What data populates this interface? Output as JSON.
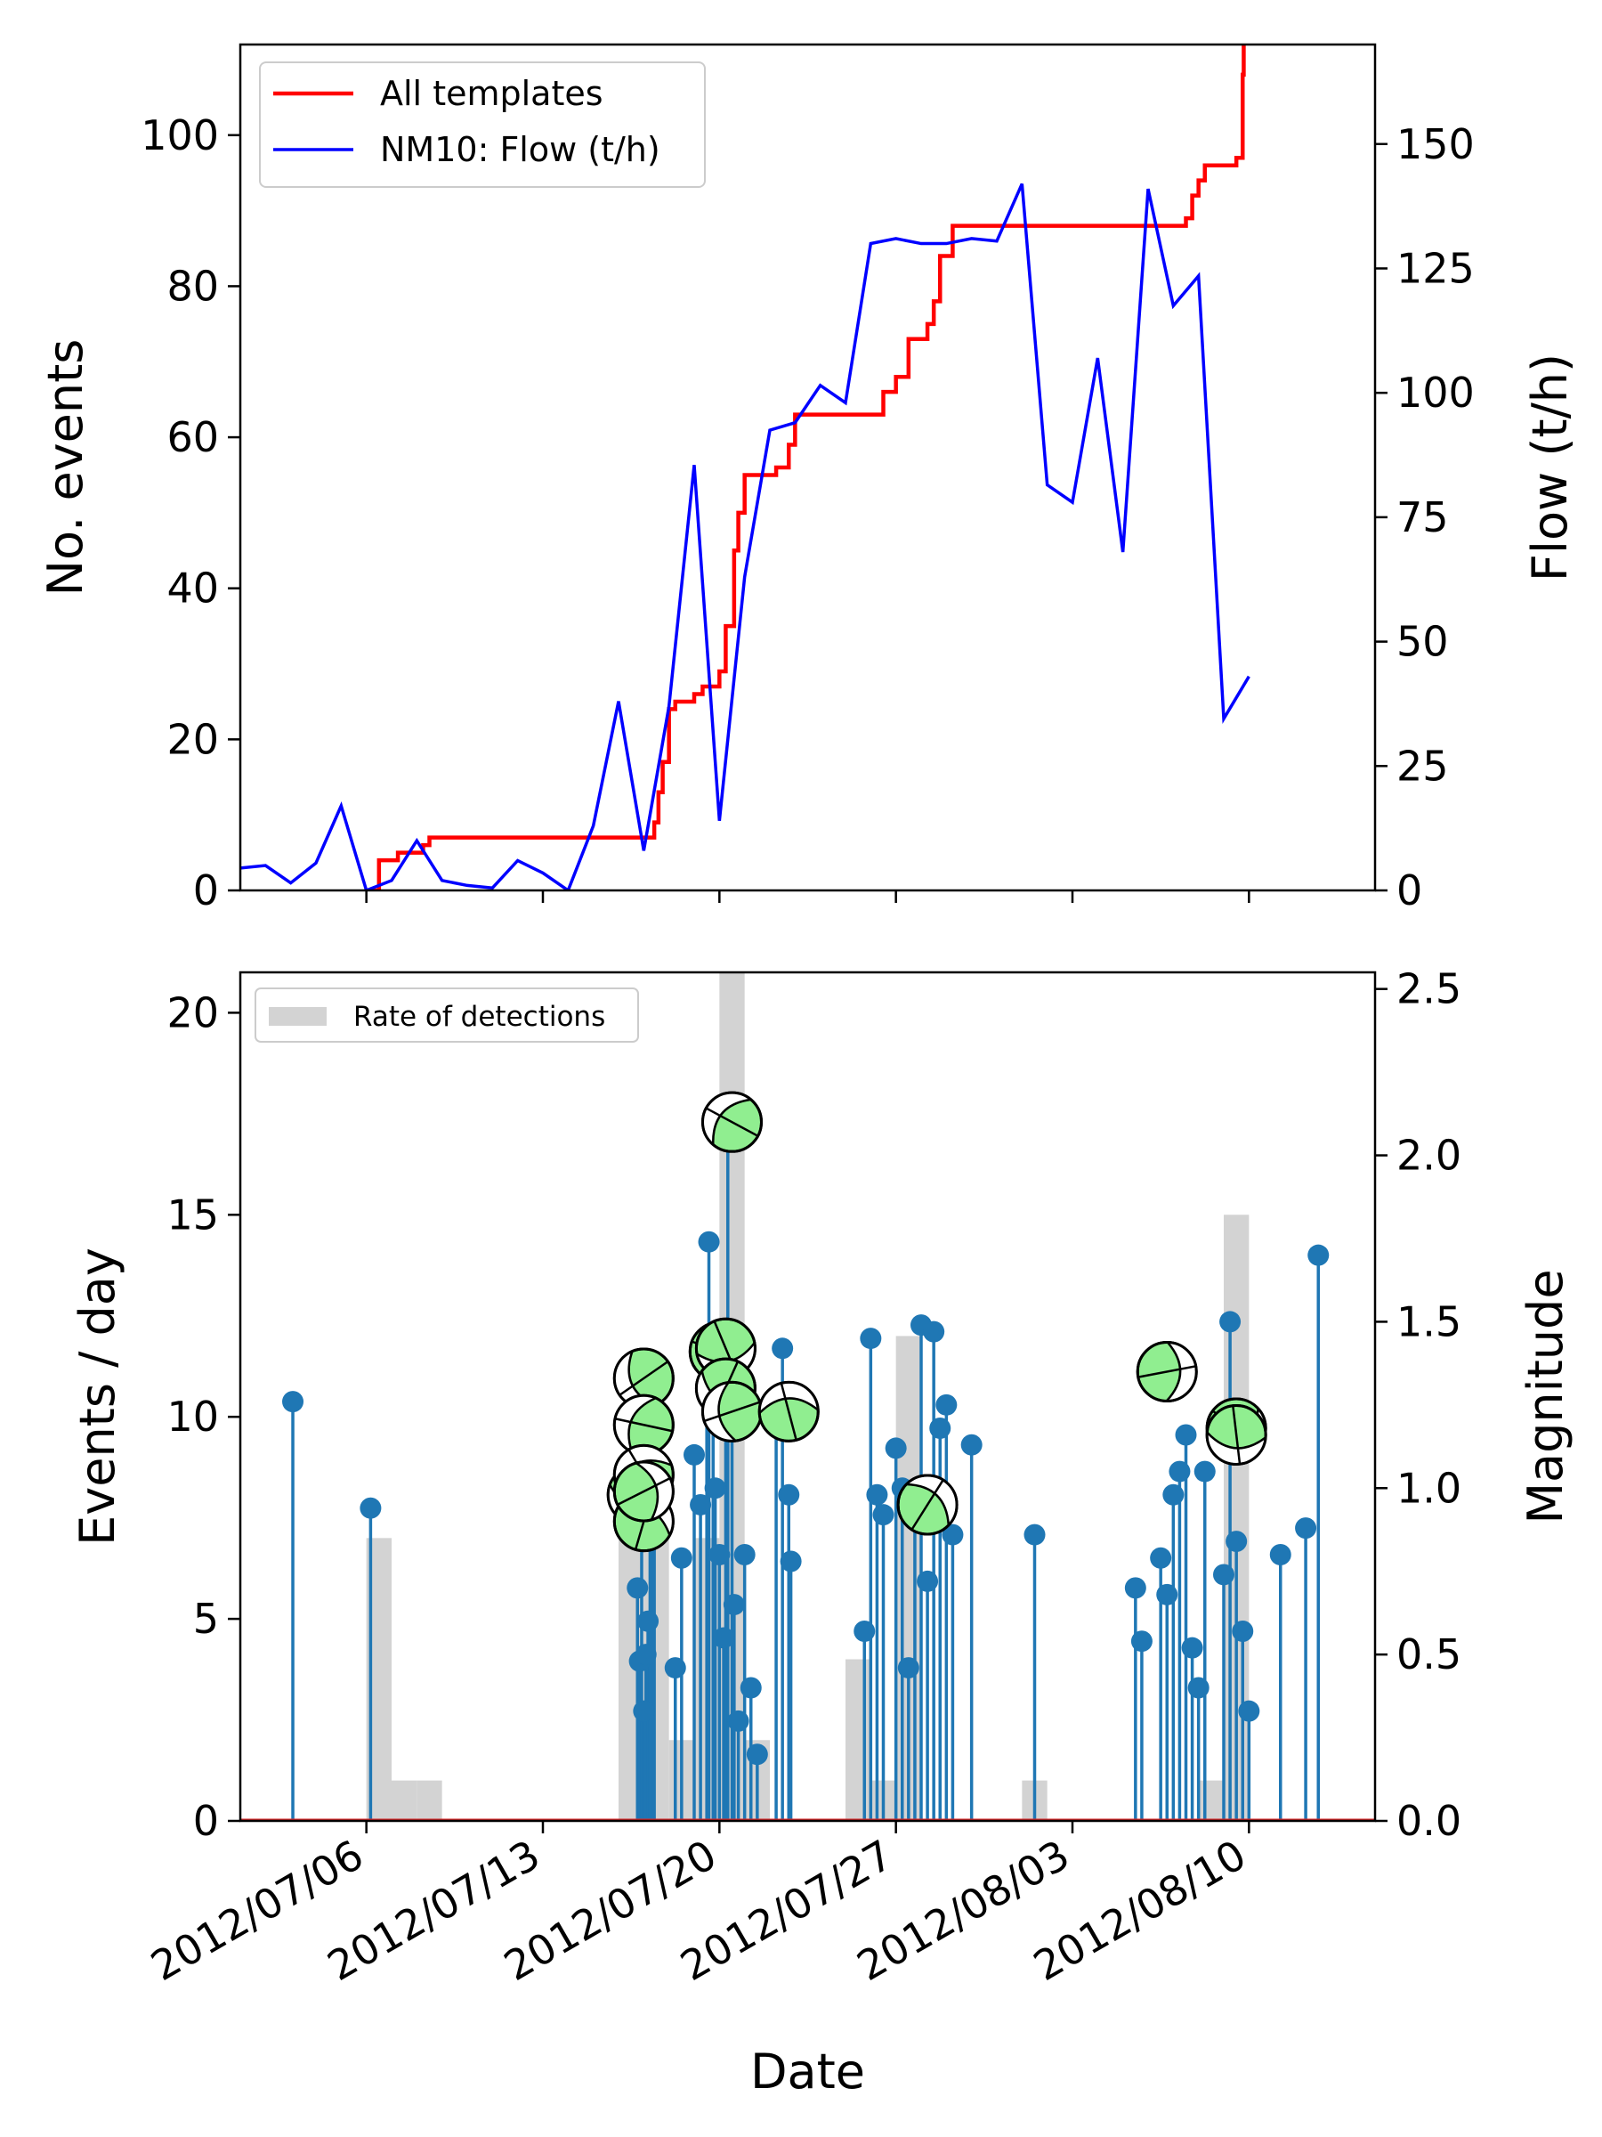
{
  "x_axis": {
    "label": "Date",
    "tick_labels": [
      "2012/07/06",
      "2012/07/13",
      "2012/07/20",
      "2012/07/27",
      "2012/08/03",
      "2012/08/10"
    ],
    "range": [
      "2012/07/01",
      "2012/08/15"
    ]
  },
  "chart_data": [
    {
      "type": "line",
      "panel": "top",
      "ylabel": "No. events",
      "ylim": [
        0,
        112
      ],
      "y_ticks": [
        0,
        20,
        40,
        60,
        80,
        100
      ],
      "y2label": "Flow (t/h)",
      "y2lim": [
        0,
        170
      ],
      "y2_ticks": [
        0,
        25,
        50,
        75,
        100,
        125,
        150
      ],
      "legend": {
        "placement": "top-left",
        "entries": [
          "All templates",
          "NM10: Flow (t/h)"
        ]
      },
      "series": [
        {
          "name": "All templates",
          "color": "#ff0000",
          "axis": "left",
          "step": true,
          "points": [
            [
              "2012/07/06 06:00",
              0
            ],
            [
              "2012/07/06 12:00",
              4
            ],
            [
              "2012/07/07 06:00",
              5
            ],
            [
              "2012/07/08 06:00",
              6
            ],
            [
              "2012/07/08 12:00",
              7
            ],
            [
              "2012/07/17 06:00",
              7
            ],
            [
              "2012/07/17 10:00",
              9
            ],
            [
              "2012/07/17 14:00",
              13
            ],
            [
              "2012/07/17 18:00",
              17
            ],
            [
              "2012/07/18 00:00",
              24
            ],
            [
              "2012/07/18 06:00",
              25
            ],
            [
              "2012/07/19 00:00",
              26
            ],
            [
              "2012/07/19 08:00",
              27
            ],
            [
              "2012/07/20 00:00",
              29
            ],
            [
              "2012/07/20 06:00",
              35
            ],
            [
              "2012/07/20 14:00",
              45
            ],
            [
              "2012/07/20 18:00",
              50
            ],
            [
              "2012/07/21 00:00",
              55
            ],
            [
              "2012/07/22 06:00",
              56
            ],
            [
              "2012/07/22 18:00",
              59
            ],
            [
              "2012/07/23 00:00",
              63
            ],
            [
              "2012/07/26 12:00",
              66
            ],
            [
              "2012/07/27 00:00",
              68
            ],
            [
              "2012/07/27 12:00",
              73
            ],
            [
              "2012/07/28 06:00",
              75
            ],
            [
              "2012/07/28 12:00",
              78
            ],
            [
              "2012/07/28 18:00",
              84
            ],
            [
              "2012/07/29 06:00",
              88
            ],
            [
              "2012/08/07 12:00",
              89
            ],
            [
              "2012/08/07 18:00",
              92
            ],
            [
              "2012/08/08 00:00",
              94
            ],
            [
              "2012/08/08 06:00",
              96
            ],
            [
              "2012/08/09 12:00",
              97
            ],
            [
              "2012/08/09 18:00",
              108
            ],
            [
              "2012/08/09 19:00",
              112
            ]
          ]
        },
        {
          "name": "NM10: Flow (t/h)",
          "color": "#0000ff",
          "axis": "right",
          "points": [
            [
              "2012/07/01",
              4.5
            ],
            [
              "2012/07/02",
              5
            ],
            [
              "2012/07/03",
              1.5
            ],
            [
              "2012/07/04",
              5.5
            ],
            [
              "2012/07/05",
              17
            ],
            [
              "2012/07/06",
              0
            ],
            [
              "2012/07/07",
              2
            ],
            [
              "2012/07/08",
              10
            ],
            [
              "2012/07/09",
              2
            ],
            [
              "2012/07/10",
              1
            ],
            [
              "2012/07/11",
              0.5
            ],
            [
              "2012/07/12",
              6
            ],
            [
              "2012/07/13",
              3.5
            ],
            [
              "2012/07/14",
              0
            ],
            [
              "2012/07/15",
              13
            ],
            [
              "2012/07/16",
              38
            ],
            [
              "2012/07/17",
              8
            ],
            [
              "2012/07/18",
              37
            ],
            [
              "2012/07/19",
              85.5
            ],
            [
              "2012/07/20",
              14
            ],
            [
              "2012/07/21",
              63
            ],
            [
              "2012/07/22",
              92.5
            ],
            [
              "2012/07/23",
              94
            ],
            [
              "2012/07/24",
              101.5
            ],
            [
              "2012/07/25",
              98
            ],
            [
              "2012/07/26",
              130
            ],
            [
              "2012/07/27",
              131
            ],
            [
              "2012/07/28",
              130
            ],
            [
              "2012/07/29",
              130
            ],
            [
              "2012/07/30",
              131
            ],
            [
              "2012/07/31",
              130.5
            ],
            [
              "2012/08/01",
              142
            ],
            [
              "2012/08/02",
              81.5
            ],
            [
              "2012/08/03",
              78
            ],
            [
              "2012/08/04",
              107
            ],
            [
              "2012/08/05",
              68
            ],
            [
              "2012/08/06",
              141
            ],
            [
              "2012/08/07",
              117.5
            ],
            [
              "2012/08/08",
              123.5
            ],
            [
              "2012/08/09",
              34.5
            ],
            [
              "2012/08/10",
              43
            ]
          ]
        }
      ]
    },
    {
      "type": "bar",
      "panel": "bottom",
      "ylabel": "Events / day",
      "ylim": [
        0,
        21
      ],
      "y_ticks": [
        0,
        5,
        10,
        15,
        20
      ],
      "legend": {
        "placement": "top-left",
        "entries": [
          "Rate of detections"
        ]
      },
      "series": [
        {
          "name": "Rate of detections",
          "color": "#d3d3d3",
          "bin_width_days": 1,
          "bars": [
            [
              "2012/07/06",
              7
            ],
            [
              "2012/07/07",
              1
            ],
            [
              "2012/07/08",
              1
            ],
            [
              "2012/07/16",
              7
            ],
            [
              "2012/07/17",
              7
            ],
            [
              "2012/07/18",
              2
            ],
            [
              "2012/07/19",
              7
            ],
            [
              "2012/07/20",
              21
            ],
            [
              "2012/07/21",
              2
            ],
            [
              "2012/07/25",
              4
            ],
            [
              "2012/07/26",
              1
            ],
            [
              "2012/07/27",
              12
            ],
            [
              "2012/08/01",
              1
            ],
            [
              "2012/08/08",
              1
            ],
            [
              "2012/08/09",
              15
            ]
          ]
        }
      ]
    },
    {
      "type": "scatter",
      "panel": "bottom",
      "style": "stem",
      "y2label": "Magnitude",
      "y2lim": [
        0,
        2.55
      ],
      "y2_ticks": [
        "0.0",
        "0.5",
        "1.0",
        "1.5",
        "2.0",
        "2.5"
      ],
      "baseline_color": "#d62728",
      "color": "#1f77b4",
      "mechanism_fill": "#90ee90",
      "points": [
        [
          "2012/07/03 02:00",
          1.26
        ],
        [
          "2012/07/06 04:00",
          0.94
        ],
        [
          "2012/07/16 18:00",
          0.7
        ],
        [
          "2012/07/16 20:00",
          0.48
        ],
        [
          "2012/07/16 22:00",
          0.98
        ],
        [
          "2012/07/17 00:00",
          0.33
        ],
        [
          "2012/07/17 02:00",
          0.5
        ],
        [
          "2012/07/17 04:00",
          0.6
        ],
        [
          "2012/07/17 06:00",
          0.9
        ],
        [
          "2012/07/17 08:00",
          0.96
        ],
        [
          "2012/07/17 10:00",
          1.2
        ],
        [
          "2012/07/18 06:00",
          0.46
        ],
        [
          "2012/07/18 12:00",
          0.79
        ],
        [
          "2012/07/19 00:00",
          1.1
        ],
        [
          "2012/07/19 06:00",
          0.95
        ],
        [
          "2012/07/19 12:00",
          1.4
        ],
        [
          "2012/07/19 14:00",
          1.74
        ],
        [
          "2012/07/19 18:00",
          1.29
        ],
        [
          "2012/07/19 20:00",
          1.0
        ],
        [
          "2012/07/20 00:00",
          0.8
        ],
        [
          "2012/07/20 04:00",
          0.55
        ],
        [
          "2012/07/20 06:00",
          1.31
        ],
        [
          "2012/07/20 08:00",
          2.1
        ],
        [
          "2012/07/20 12:00",
          1.22
        ],
        [
          "2012/07/20 14:00",
          0.65
        ],
        [
          "2012/07/20 18:00",
          0.3
        ],
        [
          "2012/07/21 00:00",
          0.8
        ],
        [
          "2012/07/21 06:00",
          0.4
        ],
        [
          "2012/07/21 12:00",
          0.2
        ],
        [
          "2012/07/22 06:00",
          1.24
        ],
        [
          "2012/07/22 12:00",
          1.42
        ],
        [
          "2012/07/22 18:00",
          0.98
        ],
        [
          "2012/07/22 20:00",
          0.78
        ],
        [
          "2012/07/25 18:00",
          0.57
        ],
        [
          "2012/07/26 00:00",
          1.45
        ],
        [
          "2012/07/26 06:00",
          0.98
        ],
        [
          "2012/07/26 12:00",
          0.92
        ],
        [
          "2012/07/27 00:00",
          1.12
        ],
        [
          "2012/07/27 06:00",
          1.0
        ],
        [
          "2012/07/27 12:00",
          0.46
        ],
        [
          "2012/07/27 18:00",
          0.95
        ],
        [
          "2012/07/28 00:00",
          1.49
        ],
        [
          "2012/07/28 06:00",
          0.72
        ],
        [
          "2012/07/28 12:00",
          1.47
        ],
        [
          "2012/07/28 18:00",
          1.18
        ],
        [
          "2012/07/29 00:00",
          1.25
        ],
        [
          "2012/07/29 06:00",
          0.86
        ],
        [
          "2012/07/30 00:00",
          1.13
        ],
        [
          "2012/08/01 12:00",
          0.86
        ],
        [
          "2012/08/05 12:00",
          0.7
        ],
        [
          "2012/08/05 18:00",
          0.54
        ],
        [
          "2012/08/06 12:00",
          0.79
        ],
        [
          "2012/08/06 18:00",
          0.68
        ],
        [
          "2012/08/07 00:00",
          0.98
        ],
        [
          "2012/08/07 06:00",
          1.05
        ],
        [
          "2012/08/07 12:00",
          1.16
        ],
        [
          "2012/08/07 18:00",
          0.52
        ],
        [
          "2012/08/08 00:00",
          0.4
        ],
        [
          "2012/08/08 06:00",
          1.05
        ],
        [
          "2012/08/09 00:00",
          0.74
        ],
        [
          "2012/08/09 06:00",
          1.5
        ],
        [
          "2012/08/09 12:00",
          0.84
        ],
        [
          "2012/08/09 18:00",
          0.57
        ],
        [
          "2012/08/10 00:00",
          0.33
        ],
        [
          "2012/08/11 06:00",
          0.8
        ],
        [
          "2012/08/12 06:00",
          0.88
        ],
        [
          "2012/08/12 18:00",
          1.7
        ]
      ],
      "focal_mechanisms": [
        [
          "2012/07/16 18:00",
          0.98
        ],
        [
          "2012/07/17 00:00",
          1.33
        ],
        [
          "2012/07/17 00:00",
          1.19
        ],
        [
          "2012/07/17 00:00",
          1.04
        ],
        [
          "2012/07/17 00:00",
          0.9
        ],
        [
          "2012/07/17 00:00",
          0.99
        ],
        [
          "2012/07/20 00:00",
          1.41
        ],
        [
          "2012/07/20 06:00",
          1.42
        ],
        [
          "2012/07/20 06:00",
          1.3
        ],
        [
          "2012/07/20 12:00",
          1.23
        ],
        [
          "2012/07/20 12:00",
          2.1
        ],
        [
          "2012/07/22 18:00",
          1.23
        ],
        [
          "2012/07/28 06:00",
          0.95
        ],
        [
          "2012/08/06 18:00",
          1.35
        ],
        [
          "2012/08/09 12:00",
          1.18
        ],
        [
          "2012/08/09 12:00",
          1.16
        ]
      ]
    }
  ]
}
